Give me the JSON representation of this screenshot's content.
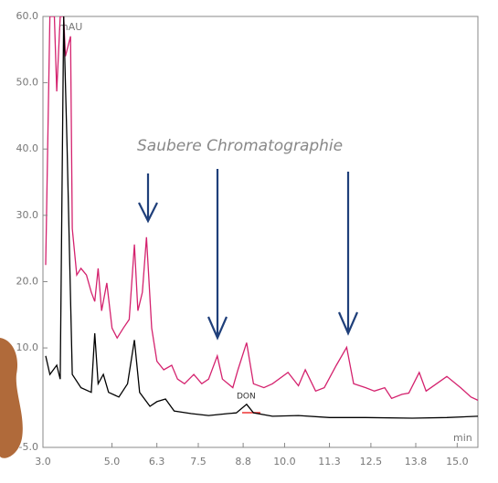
{
  "chart_data": {
    "type": "line",
    "annotations": {
      "clean": "Saubere Chromatographie",
      "peak": "DON"
    },
    "ylabel": "mAU",
    "xlabel": "min",
    "xlim": [
      3.0,
      15.6
    ],
    "ylim": [
      -5,
      60
    ],
    "xticks": [
      {
        "value": 3.0,
        "label": "3.0"
      },
      {
        "value": 5.0,
        "label": "5.0"
      },
      {
        "value": 6.3,
        "label": "6.3"
      },
      {
        "value": 7.5,
        "label": "7.5"
      },
      {
        "value": 8.8,
        "label": "8.8"
      },
      {
        "value": 10.0,
        "label": "10.0"
      },
      {
        "value": 11.3,
        "label": "11.3"
      },
      {
        "value": 12.5,
        "label": "12.5"
      },
      {
        "value": 13.8,
        "label": "13.8"
      },
      {
        "value": 15.0,
        "label": "15.0"
      }
    ],
    "yticks": [
      {
        "value": 60,
        "label": "60.0"
      },
      {
        "value": 50,
        "label": "50.0"
      },
      {
        "value": 40,
        "label": "40.0"
      },
      {
        "value": 30,
        "label": "30.0"
      },
      {
        "value": 20,
        "label": "20.0"
      },
      {
        "value": 10,
        "label": "10.0"
      },
      {
        "value": -5,
        "label": "-5.0"
      }
    ],
    "series": [
      {
        "color": "#d4226e",
        "x": [
          3.08,
          3.2,
          3.33,
          3.4,
          3.5,
          3.6,
          3.65,
          3.8,
          3.85,
          3.98,
          4.1,
          4.26,
          4.4,
          4.5,
          4.6,
          4.7,
          4.85,
          5.0,
          5.15,
          5.33,
          5.5,
          5.65,
          5.75,
          5.88,
          6.0,
          6.15,
          6.3,
          6.5,
          6.73,
          6.9,
          7.1,
          7.37,
          7.6,
          7.8,
          8.05,
          8.2,
          8.5,
          8.65,
          8.9,
          9.1,
          9.4,
          9.65,
          10.1,
          10.4,
          10.6,
          10.9,
          11.15,
          11.5,
          11.8,
          12.0,
          12.35,
          12.6,
          12.9,
          13.1,
          13.4,
          13.6,
          13.9,
          14.1,
          14.4,
          14.7,
          15.1,
          15.4,
          15.6
        ],
        "values": [
          22.5,
          60,
          60,
          48.7,
          60,
          60,
          54,
          57,
          28,
          21,
          22,
          21,
          18.4,
          17,
          22,
          15.6,
          19.8,
          13,
          11.5,
          13,
          14.3,
          25.6,
          15.6,
          18.4,
          26.7,
          13,
          8,
          6.7,
          7.4,
          5.3,
          4.6,
          6,
          4.6,
          5.3,
          8.8,
          5.3,
          4,
          6.7,
          10.8,
          4.6,
          4,
          4.6,
          6.3,
          4.3,
          6.7,
          3.5,
          4,
          7.4,
          10.1,
          4.6,
          4,
          3.5,
          4,
          2.4,
          3,
          3.2,
          6.3,
          3.5,
          4.6,
          5.7,
          4,
          2.6,
          2.1
        ]
      },
      {
        "color": "#000000",
        "x": [
          3.08,
          3.2,
          3.4,
          3.5,
          3.6,
          3.7,
          3.85,
          4.1,
          4.4,
          4.5,
          4.6,
          4.75,
          4.9,
          5.2,
          5.45,
          5.65,
          5.8,
          6.1,
          6.3,
          6.55,
          6.8,
          7.3,
          7.8,
          8.35,
          8.6,
          8.9,
          9.1,
          9.65,
          10.4,
          11.3,
          12.35,
          13.7,
          14.7,
          15.6
        ],
        "values": [
          8.8,
          6,
          7.4,
          5.3,
          60,
          40.4,
          6,
          4,
          3.3,
          12.2,
          4.6,
          6,
          3.3,
          2.6,
          4.6,
          11.2,
          3.3,
          1.2,
          1.9,
          2.3,
          0.5,
          0.1,
          -0.2,
          0.1,
          0.2,
          1.5,
          0.2,
          -0.3,
          -0.2,
          -0.5,
          -0.5,
          -0.6,
          -0.5,
          -0.3
        ]
      }
    ]
  }
}
